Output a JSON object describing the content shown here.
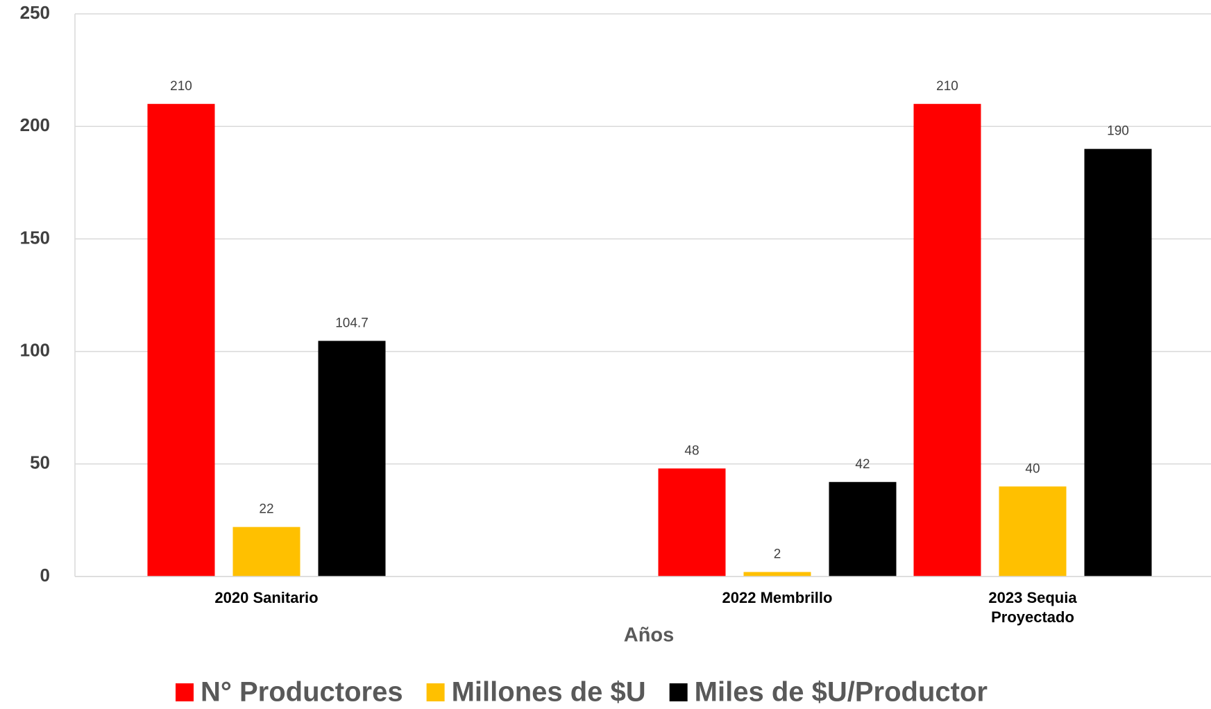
{
  "chart_data": {
    "type": "bar",
    "x_label": "Años",
    "categories": [
      "2020 Sanitario",
      null,
      "2022 Membrillo",
      "2023 Sequia Proyectado"
    ],
    "series": [
      {
        "name": "N° Productores",
        "color": "#ff0000",
        "values": [
          210,
          null,
          48,
          210
        ]
      },
      {
        "name": "Millones de $U",
        "color": "#ffc000",
        "values": [
          22,
          null,
          2,
          40
        ]
      },
      {
        "name": "Miles de $U/Productor",
        "color": "#000000",
        "values": [
          104.7,
          null,
          42,
          190
        ]
      }
    ],
    "ylim": [
      0,
      250
    ],
    "yticks": [
      0,
      50,
      100,
      150,
      200,
      250
    ],
    "grid": true,
    "legend": "bottom"
  }
}
